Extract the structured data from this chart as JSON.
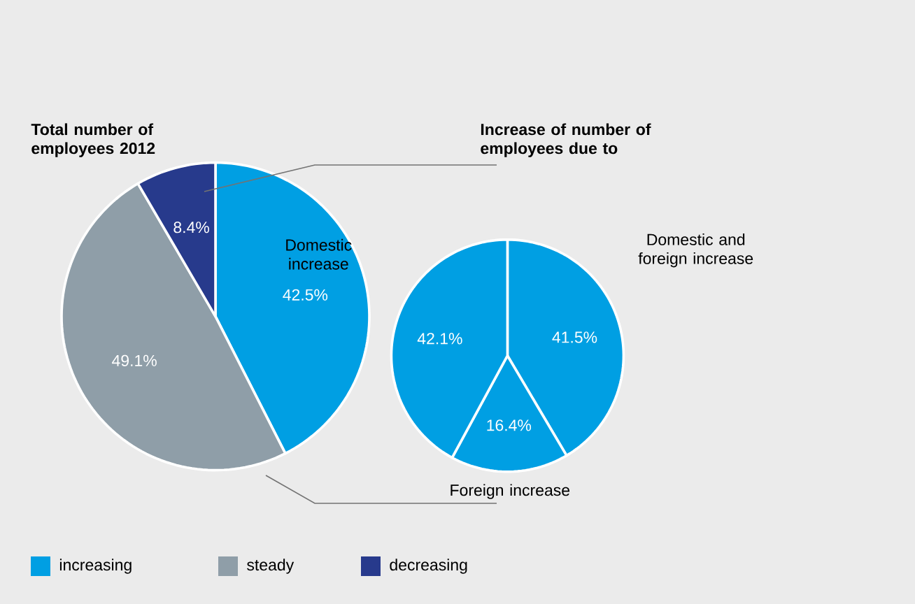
{
  "chart_data": [
    {
      "type": "pie",
      "title": "Total number of employees 2012",
      "categories": [
        "increasing",
        "steady",
        "decreasing"
      ],
      "values": [
        42.5,
        49.1,
        8.4
      ],
      "value_labels": [
        "42.5%",
        "49.1%",
        "8.4%"
      ],
      "colors": [
        "#009fe3",
        "#8f9ea8",
        "#273a8c"
      ],
      "legend": "bottom"
    },
    {
      "type": "pie",
      "title": "Increase of number of employees due to",
      "categories": [
        "Domestic and foreign increase",
        "Foreign increase",
        "Domestic increase"
      ],
      "values": [
        41.5,
        16.4,
        42.1
      ],
      "value_labels": [
        "41.5%",
        "16.4%",
        "42.1%"
      ],
      "colors": [
        "#009fe3",
        "#009fe3",
        "#009fe3"
      ],
      "legend": false
    }
  ]
}
